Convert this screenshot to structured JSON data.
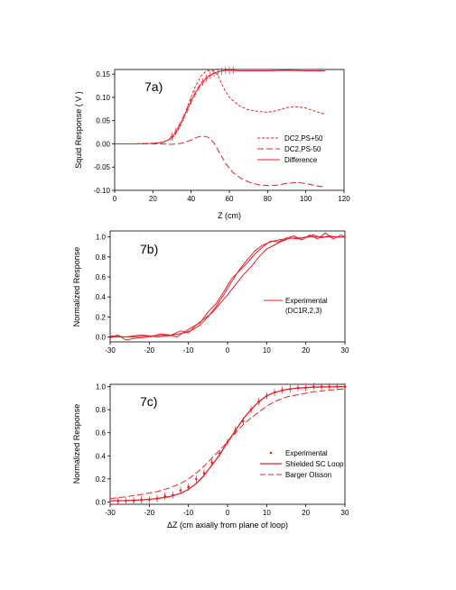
{
  "chart_data": [
    {
      "type": "line",
      "title": "7a)",
      "xlabel": "Z  (cm)",
      "ylabel": "Squid Response  ( V )",
      "xlim": [
        0,
        120
      ],
      "ylim": [
        -0.1,
        0.16
      ],
      "xticks": [
        0,
        20,
        40,
        60,
        80,
        100,
        120
      ],
      "xtick_labels": [
        "0",
        "20",
        "40",
        "60",
        "80",
        "100",
        "120"
      ],
      "yticks": [
        -0.1,
        -0.05,
        0.0,
        0.05,
        0.1,
        0.15
      ],
      "ytick_labels": [
        "-0.10",
        "-0.05",
        "0.00",
        "0.05",
        "0.10",
        "0.15"
      ],
      "legend_position": "lower-right",
      "color": "#e8202a",
      "series": [
        {
          "name": "DC2,PS+50",
          "style": "dash-short",
          "x": [
            0,
            10,
            20,
            25,
            30,
            33,
            36,
            39,
            42,
            45,
            48,
            51,
            54,
            57,
            60,
            65,
            70,
            75,
            80,
            85,
            90,
            95,
            100,
            105,
            110
          ],
          "y": [
            0,
            0,
            0.001,
            0.004,
            0.012,
            0.028,
            0.055,
            0.09,
            0.122,
            0.145,
            0.157,
            0.158,
            0.148,
            0.12,
            0.1,
            0.082,
            0.073,
            0.07,
            0.068,
            0.072,
            0.078,
            0.08,
            0.077,
            0.07,
            0.064
          ]
        },
        {
          "name": "DC2,PS-50",
          "style": "dash-long",
          "x": [
            0,
            10,
            20,
            25,
            30,
            35,
            40,
            43,
            46,
            49,
            52,
            55,
            58,
            62,
            66,
            70,
            75,
            80,
            85,
            90,
            95,
            100,
            105,
            110
          ],
          "y": [
            0,
            0,
            0,
            0,
            -0.001,
            0.001,
            0.008,
            0.014,
            0.017,
            0.014,
            0.002,
            -0.02,
            -0.042,
            -0.062,
            -0.074,
            -0.082,
            -0.088,
            -0.09,
            -0.089,
            -0.085,
            -0.083,
            -0.085,
            -0.09,
            -0.093
          ]
        },
        {
          "name": "Difference",
          "style": "solid",
          "x": [
            0,
            10,
            20,
            25,
            28,
            31,
            34,
            37,
            40,
            43,
            46,
            49,
            52,
            55,
            58,
            61,
            65,
            70,
            80,
            90,
            100,
            110
          ],
          "y": [
            0,
            0,
            0.001,
            0.003,
            0.008,
            0.02,
            0.04,
            0.065,
            0.092,
            0.115,
            0.133,
            0.145,
            0.152,
            0.156,
            0.158,
            0.158,
            0.157,
            0.157,
            0.157,
            0.158,
            0.157,
            0.157
          ]
        }
      ],
      "error_points_x": [
        30,
        32,
        34,
        36,
        38,
        40,
        42,
        44,
        46,
        48,
        50,
        52,
        54,
        56,
        58,
        60,
        62
      ]
    },
    {
      "type": "line",
      "title": "7b)",
      "xlabel": "",
      "ylabel": "Normalized Response",
      "xlim": [
        -30,
        30
      ],
      "ylim": [
        -0.05,
        1.06
      ],
      "xticks": [
        -30,
        -20,
        -10,
        0,
        10,
        20,
        30
      ],
      "xtick_labels": [
        "-30",
        "-20",
        "-10",
        "0",
        "10",
        "20",
        "30"
      ],
      "yticks": [
        0.0,
        0.2,
        0.4,
        0.6,
        0.8,
        1.0
      ],
      "ytick_labels": [
        "0.0",
        "0.2",
        "0.4",
        "0.6",
        "0.8",
        "1.0"
      ],
      "legend_position": "right",
      "legend": [
        "Experimental",
        "(DC1R,2,3)"
      ],
      "color": "#e8202a",
      "series": [
        {
          "name": "Experimental",
          "x": [
            -30,
            -27,
            -24,
            -20,
            -17,
            -14,
            -11,
            -9,
            -7,
            -5,
            -3,
            -1,
            1,
            3,
            5,
            7,
            9,
            11,
            13,
            15,
            17,
            19,
            21,
            23,
            25,
            27,
            29,
            30
          ],
          "y": [
            0.0,
            0.0,
            0.0,
            0.01,
            0.015,
            0.02,
            0.04,
            0.07,
            0.12,
            0.2,
            0.3,
            0.42,
            0.55,
            0.67,
            0.77,
            0.86,
            0.92,
            0.95,
            0.97,
            0.98,
            0.99,
            0.99,
            1.0,
            1.0,
            1.0,
            1.0,
            1.0,
            1.0
          ]
        },
        {
          "name": "",
          "x": [
            -30,
            -28,
            -26,
            -23,
            -20,
            -17,
            -15,
            -13,
            -11,
            -9,
            -7,
            -5,
            -3,
            -1,
            1,
            3,
            5,
            7,
            9,
            11,
            13,
            15,
            17,
            19,
            21,
            23,
            25,
            27,
            29,
            30
          ],
          "y": [
            -0.01,
            0.02,
            -0.03,
            -0.01,
            0.0,
            0.03,
            0.02,
            0.0,
            0.05,
            0.1,
            0.14,
            0.25,
            0.33,
            0.45,
            0.58,
            0.66,
            0.74,
            0.83,
            0.9,
            0.96,
            0.95,
            0.99,
            1.01,
            0.97,
            1.02,
            0.98,
            1.04,
            0.98,
            1.02,
            1.0
          ]
        },
        {
          "name": "",
          "x": [
            -30,
            -26,
            -22,
            -18,
            -15,
            -12,
            -10,
            -8,
            -6,
            -4,
            -2,
            0,
            2,
            4,
            6,
            8,
            10,
            12,
            14,
            16,
            18,
            20,
            22,
            24,
            26,
            28,
            30
          ],
          "y": [
            0.01,
            0.0,
            0.02,
            0.0,
            0.01,
            0.06,
            0.04,
            0.12,
            0.18,
            0.24,
            0.33,
            0.42,
            0.52,
            0.62,
            0.7,
            0.8,
            0.88,
            0.92,
            0.96,
            0.99,
            0.98,
            1.0,
            1.02,
            0.99,
            1.01,
            1.0,
            1.0
          ]
        }
      ]
    },
    {
      "type": "line",
      "title": "7c)",
      "xlabel": "ΔZ  (cm axially from plane of loop)",
      "ylabel": "Normalized Response",
      "xlim": [
        -30,
        30
      ],
      "ylim": [
        -0.02,
        1.02
      ],
      "xticks": [
        -30,
        -20,
        -10,
        0,
        10,
        20,
        30
      ],
      "xtick_labels": [
        "-30",
        "-20",
        "-10",
        "0",
        "10",
        "20",
        "30"
      ],
      "yticks": [
        0.0,
        0.2,
        0.4,
        0.6,
        0.8,
        1.0
      ],
      "ytick_labels": [
        "0.0",
        "0.2",
        "0.4",
        "0.6",
        "0.8",
        "1.0"
      ],
      "legend_position": "right",
      "color": "#e8202a",
      "series": [
        {
          "name": "Experimental",
          "style": "dots",
          "x": [
            -28,
            -26,
            -24,
            -22,
            -20,
            -18,
            -16,
            -14,
            -12,
            -10,
            -8,
            -6,
            -4,
            -2,
            0,
            2,
            4,
            6,
            8,
            10,
            12,
            14,
            16,
            18,
            20,
            22,
            24,
            26,
            28,
            30
          ],
          "y": [
            0.01,
            0.01,
            0.01,
            0.02,
            0.02,
            0.03,
            0.05,
            0.06,
            0.1,
            0.13,
            0.2,
            0.25,
            0.34,
            0.42,
            0.52,
            0.62,
            0.7,
            0.8,
            0.87,
            0.92,
            0.95,
            0.97,
            0.98,
            0.99,
            0.99,
            1.0,
            1.0,
            1.0,
            1.0,
            1.0
          ]
        },
        {
          "name": "Shielded SC Loop",
          "style": "solid",
          "x": [
            -30,
            -26,
            -22,
            -18,
            -15,
            -12,
            -10,
            -8,
            -6,
            -4,
            -2,
            0,
            2,
            4,
            6,
            8,
            10,
            12,
            15,
            18,
            22,
            26,
            30
          ],
          "y": [
            0.01,
            0.012,
            0.018,
            0.03,
            0.045,
            0.075,
            0.11,
            0.16,
            0.23,
            0.32,
            0.41,
            0.52,
            0.62,
            0.72,
            0.8,
            0.87,
            0.92,
            0.95,
            0.975,
            0.988,
            0.995,
            0.998,
            1.0
          ]
        },
        {
          "name": "Barger Olsson",
          "style": "dash-long",
          "x": [
            -30,
            -26,
            -22,
            -18,
            -15,
            -12,
            -10,
            -8,
            -6,
            -4,
            -2,
            0,
            2,
            4,
            6,
            8,
            10,
            12,
            15,
            18,
            22,
            26,
            30
          ],
          "y": [
            0.03,
            0.045,
            0.065,
            0.09,
            0.12,
            0.16,
            0.2,
            0.25,
            0.31,
            0.38,
            0.45,
            0.52,
            0.6,
            0.67,
            0.73,
            0.78,
            0.83,
            0.87,
            0.91,
            0.93,
            0.955,
            0.97,
            0.98
          ]
        }
      ]
    }
  ]
}
